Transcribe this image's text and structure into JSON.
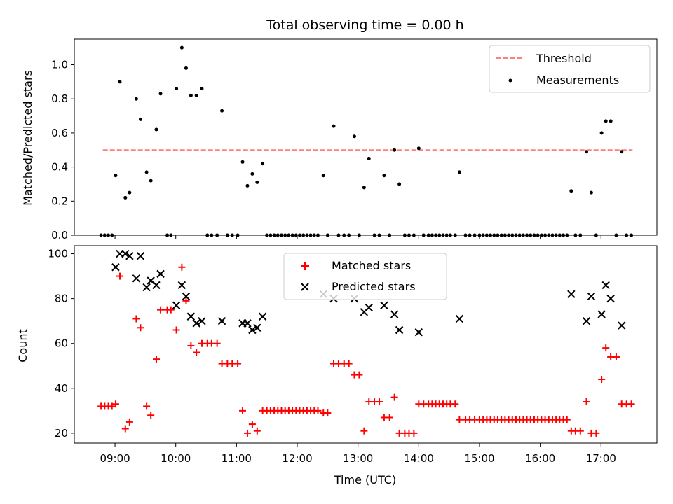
{
  "title": "Total observing time = 0.00 h",
  "xlabel": "Time (UTC)",
  "x_ticks": [
    "09:00",
    "10:00",
    "11:00",
    "12:00",
    "13:00",
    "14:00",
    "15:00",
    "16:00",
    "17:00"
  ],
  "colors": {
    "threshold": "#ff7f7f",
    "measurements": "#000000",
    "matched": "#ff0000",
    "predicted": "#000000"
  },
  "chart_data": [
    {
      "type": "scatter",
      "ylabel": "Matched/Predicted stars",
      "y_ticks": [
        "0.0",
        "0.2",
        "0.4",
        "0.6",
        "0.8",
        "1.0"
      ],
      "xlim_hours": [
        8.33,
        17.92
      ],
      "ylim": [
        0,
        1.15
      ],
      "legend_position": "top-right",
      "threshold": {
        "name": "Threshold",
        "value": 0.5,
        "x_range_hours": [
          8.8,
          17.52
        ]
      },
      "series": [
        {
          "name": "Measurements",
          "x_hours": [
            8.77,
            8.83,
            8.89,
            8.95,
            9.01,
            9.08,
            9.17,
            9.24,
            9.35,
            9.42,
            9.52,
            9.59,
            9.68,
            9.75,
            9.86,
            9.92,
            10.01,
            10.1,
            10.17,
            10.25,
            10.34,
            10.43,
            10.52,
            10.59,
            10.68,
            10.76,
            10.85,
            10.93,
            11.02,
            11.1,
            11.18,
            11.26,
            11.34,
            11.43,
            11.5,
            11.56,
            11.62,
            11.68,
            11.74,
            11.8,
            11.86,
            11.92,
            11.98,
            12.04,
            12.1,
            12.16,
            12.22,
            12.28,
            12.34,
            12.43,
            12.5,
            12.6,
            12.68,
            12.77,
            12.85,
            12.94,
            13.02,
            13.1,
            13.18,
            13.27,
            13.35,
            13.43,
            13.52,
            13.6,
            13.68,
            13.77,
            13.84,
            13.92,
            14.0,
            14.08,
            14.16,
            14.22,
            14.28,
            14.34,
            14.4,
            14.46,
            14.52,
            14.6,
            14.67,
            14.77,
            14.84,
            14.92,
            15.0,
            15.06,
            15.12,
            15.18,
            15.24,
            15.3,
            15.36,
            15.42,
            15.48,
            15.54,
            15.6,
            15.66,
            15.72,
            15.78,
            15.84,
            15.9,
            15.96,
            16.02,
            16.08,
            16.14,
            16.2,
            16.26,
            16.32,
            16.38,
            16.44,
            16.51,
            16.58,
            16.66,
            16.76,
            16.84,
            16.92,
            17.01,
            17.08,
            17.16,
            17.25,
            17.34,
            17.42,
            17.5
          ],
          "y": [
            0,
            0,
            0,
            0,
            0.35,
            0.9,
            0.22,
            0.25,
            0.8,
            0.68,
            0.37,
            0.32,
            0.62,
            0.83,
            0,
            0,
            0.86,
            1.1,
            0.98,
            0.82,
            0.82,
            0.86,
            0,
            0,
            0,
            0.73,
            0,
            0,
            0,
            0.43,
            0.29,
            0.36,
            0.31,
            0.42,
            0,
            0,
            0,
            0,
            0,
            0,
            0,
            0,
            0,
            0,
            0,
            0,
            0,
            0,
            0,
            0.35,
            0,
            0.64,
            0,
            0,
            0,
            0.58,
            0,
            0.28,
            0.45,
            0,
            0,
            0.35,
            0,
            0.5,
            0.3,
            0,
            0,
            0,
            0.51,
            0,
            0,
            0,
            0,
            0,
            0,
            0,
            0,
            0,
            0.37,
            0,
            0,
            0,
            0,
            0,
            0,
            0,
            0,
            0,
            0,
            0,
            0,
            0,
            0,
            0,
            0,
            0,
            0,
            0,
            0,
            0,
            0,
            0,
            0,
            0,
            0,
            0,
            0,
            0.26,
            0,
            0,
            0.49,
            0.25,
            0,
            0.6,
            0.67,
            0.67,
            0,
            0.49,
            0,
            0
          ]
        }
      ]
    },
    {
      "type": "scatter",
      "ylabel": "Count",
      "y_ticks": [
        "20",
        "40",
        "60",
        "80",
        "100"
      ],
      "xlim_hours": [
        8.33,
        17.92
      ],
      "ylim": [
        15.6,
        103.6
      ],
      "legend_position": "top-center",
      "series": [
        {
          "name": "Matched stars",
          "x_hours": [
            8.77,
            8.83,
            8.89,
            8.95,
            9.01,
            9.08,
            9.17,
            9.24,
            9.35,
            9.42,
            9.52,
            9.59,
            9.68,
            9.75,
            9.86,
            9.92,
            10.01,
            10.1,
            10.17,
            10.25,
            10.34,
            10.43,
            10.52,
            10.59,
            10.68,
            10.76,
            10.85,
            10.93,
            11.02,
            11.1,
            11.18,
            11.26,
            11.34,
            11.43,
            11.5,
            11.56,
            11.62,
            11.68,
            11.74,
            11.8,
            11.86,
            11.92,
            11.98,
            12.04,
            12.1,
            12.16,
            12.22,
            12.28,
            12.34,
            12.43,
            12.5,
            12.6,
            12.68,
            12.77,
            12.85,
            12.94,
            13.02,
            13.1,
            13.18,
            13.27,
            13.35,
            13.43,
            13.52,
            13.6,
            13.68,
            13.77,
            13.84,
            13.92,
            14.0,
            14.08,
            14.16,
            14.22,
            14.28,
            14.34,
            14.4,
            14.46,
            14.52,
            14.6,
            14.67,
            14.77,
            14.84,
            14.92,
            15.0,
            15.06,
            15.12,
            15.18,
            15.24,
            15.3,
            15.36,
            15.42,
            15.48,
            15.54,
            15.6,
            15.66,
            15.72,
            15.78,
            15.84,
            15.9,
            15.96,
            16.02,
            16.08,
            16.14,
            16.2,
            16.26,
            16.32,
            16.38,
            16.44,
            16.51,
            16.58,
            16.66,
            16.76,
            16.84,
            16.92,
            17.01,
            17.08,
            17.16,
            17.25,
            17.34,
            17.42,
            17.5
          ],
          "y": [
            32,
            32,
            32,
            32,
            33,
            90,
            22,
            25,
            71,
            67,
            32,
            28,
            53,
            75,
            75,
            75,
            66,
            94,
            79,
            59,
            56,
            60,
            60,
            60,
            60,
            51,
            51,
            51,
            51,
            30,
            20,
            24,
            21,
            30,
            30,
            30,
            30,
            30,
            30,
            30,
            30,
            30,
            30,
            30,
            30,
            30,
            30,
            30,
            30,
            29,
            29,
            51,
            51,
            51,
            51,
            46,
            46,
            21,
            34,
            34,
            34,
            27,
            27,
            36,
            20,
            20,
            20,
            20,
            33,
            33,
            33,
            33,
            33,
            33,
            33,
            33,
            33,
            33,
            26,
            26,
            26,
            26,
            26,
            26,
            26,
            26,
            26,
            26,
            26,
            26,
            26,
            26,
            26,
            26,
            26,
            26,
            26,
            26,
            26,
            26,
            26,
            26,
            26,
            26,
            26,
            26,
            26,
            21,
            21,
            21,
            34,
            20,
            20,
            44,
            58,
            54,
            54,
            33,
            33,
            33
          ]
        },
        {
          "name": "Predicted stars",
          "x_hours": [
            9.01,
            9.08,
            9.17,
            9.24,
            9.35,
            9.42,
            9.52,
            9.59,
            9.68,
            9.75,
            10.01,
            10.1,
            10.17,
            10.25,
            10.34,
            10.43,
            10.76,
            11.1,
            11.18,
            11.26,
            11.34,
            11.43,
            12.43,
            12.6,
            12.94,
            13.1,
            13.18,
            13.43,
            13.6,
            13.68,
            14.0,
            14.67,
            16.51,
            16.76,
            16.84,
            17.01,
            17.08,
            17.16,
            17.34
          ],
          "y": [
            94,
            100,
            100,
            99,
            89,
            99,
            85,
            88,
            86,
            91,
            77,
            86,
            81,
            72,
            69,
            70,
            70,
            69,
            69,
            66,
            67,
            72,
            82,
            80,
            80,
            74,
            76,
            77,
            73,
            66,
            65,
            71,
            82,
            70,
            81,
            73,
            86,
            80,
            68
          ]
        }
      ]
    }
  ]
}
